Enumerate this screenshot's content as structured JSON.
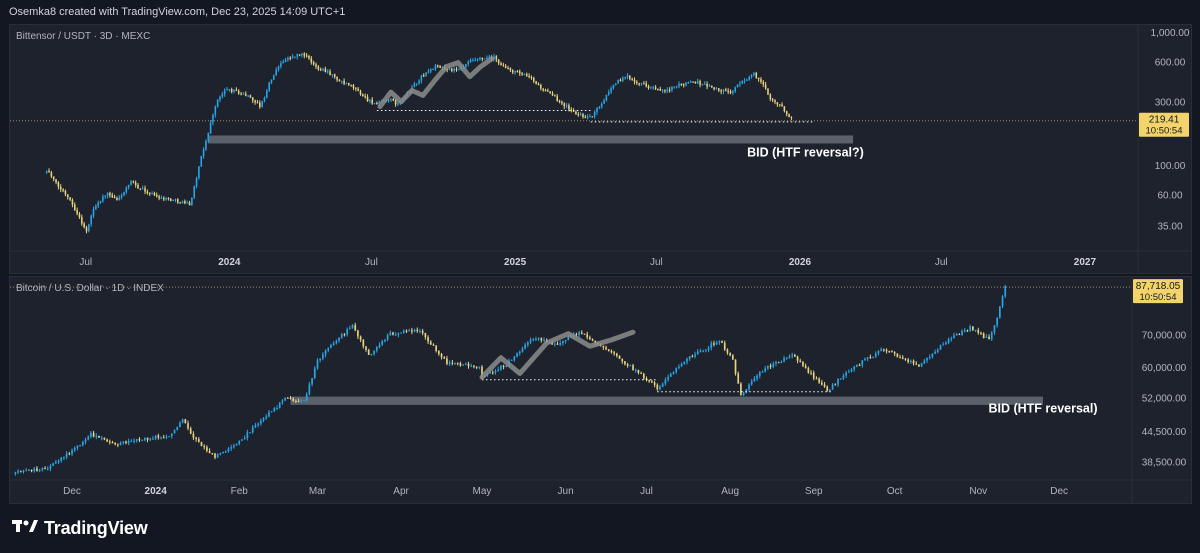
{
  "header": {
    "attribution": "Osemka8 created with TradingView.com, Dec 23, 2025 14:09 UTC+1"
  },
  "footer": {
    "logo_text": "TradingView",
    "logo_icon": "tradingview-logo-icon"
  },
  "colors": {
    "up": "#26a6e8",
    "down": "#e8d27c",
    "background": "#1e222d",
    "zone": "#8c969e",
    "path": "#8c8c8c"
  },
  "chart_data": [
    {
      "type": "candlestick",
      "title": "Bittensor / USDT · 3D · MEXC",
      "y_scale": "log",
      "ylim": [
        23,
        1150
      ],
      "y_ticks": [
        35,
        60,
        100,
        300,
        600,
        1000
      ],
      "y_tick_labels": [
        "35.00",
        "60.00",
        "100.00",
        "300.00",
        "600.00",
        "1,000.00"
      ],
      "x_ticks": [
        {
          "label": "Jul",
          "date": "2023-07-01"
        },
        {
          "label": "2024",
          "date": "2024-01-01"
        },
        {
          "label": "Jul",
          "date": "2024-07-01"
        },
        {
          "label": "2025",
          "date": "2025-01-01"
        },
        {
          "label": "Jul",
          "date": "2025-07-01"
        },
        {
          "label": "2026",
          "date": "2026-01-01"
        },
        {
          "label": "Jul",
          "date": "2026-07-01"
        },
        {
          "label": "2027",
          "date": "2027-01-01"
        }
      ],
      "xlim": [
        "2023-03-26",
        "2027-03-10"
      ],
      "candle_days": 3,
      "price_path": [
        [
          "2023-05-12",
          95
        ],
        [
          "2023-05-25",
          72
        ],
        [
          "2023-06-10",
          58
        ],
        [
          "2023-06-22",
          42
        ],
        [
          "2023-07-02",
          32
        ],
        [
          "2023-07-12",
          50
        ],
        [
          "2023-07-28",
          62
        ],
        [
          "2023-08-10",
          55
        ],
        [
          "2023-08-28",
          75
        ],
        [
          "2023-09-15",
          65
        ],
        [
          "2023-10-05",
          58
        ],
        [
          "2023-10-25",
          55
        ],
        [
          "2023-11-12",
          52
        ],
        [
          "2023-11-25",
          110
        ],
        [
          "2023-12-05",
          180
        ],
        [
          "2023-12-15",
          300
        ],
        [
          "2023-12-28",
          380
        ],
        [
          "2024-01-12",
          360
        ],
        [
          "2024-01-28",
          330
        ],
        [
          "2024-02-10",
          280
        ],
        [
          "2024-02-22",
          430
        ],
        [
          "2024-03-08",
          620
        ],
        [
          "2024-03-22",
          660
        ],
        [
          "2024-04-05",
          700
        ],
        [
          "2024-04-20",
          560
        ],
        [
          "2024-05-05",
          520
        ],
        [
          "2024-05-22",
          430
        ],
        [
          "2024-06-08",
          390
        ],
        [
          "2024-06-25",
          320
        ],
        [
          "2024-07-08",
          290
        ],
        [
          "2024-07-22",
          320
        ],
        [
          "2024-08-05",
          290
        ],
        [
          "2024-08-20",
          380
        ],
        [
          "2024-09-05",
          480
        ],
        [
          "2024-09-20",
          560
        ],
        [
          "2024-10-05",
          540
        ],
        [
          "2024-10-20",
          520
        ],
        [
          "2024-11-05",
          610
        ],
        [
          "2024-11-20",
          640
        ],
        [
          "2024-12-05",
          650
        ],
        [
          "2024-12-20",
          540
        ],
        [
          "2025-01-05",
          500
        ],
        [
          "2025-01-20",
          460
        ],
        [
          "2025-02-05",
          380
        ],
        [
          "2025-02-20",
          330
        ],
        [
          "2025-03-05",
          290
        ],
        [
          "2025-03-18",
          250
        ],
        [
          "2025-04-08",
          230
        ],
        [
          "2025-04-22",
          300
        ],
        [
          "2025-05-08",
          420
        ],
        [
          "2025-05-25",
          470
        ],
        [
          "2025-06-10",
          420
        ],
        [
          "2025-06-25",
          390
        ],
        [
          "2025-07-10",
          360
        ],
        [
          "2025-07-28",
          400
        ],
        [
          "2025-08-15",
          440
        ],
        [
          "2025-09-01",
          410
        ],
        [
          "2025-09-20",
          370
        ],
        [
          "2025-10-05",
          360
        ],
        [
          "2025-10-20",
          440
        ],
        [
          "2025-11-03",
          490
        ],
        [
          "2025-11-12",
          430
        ],
        [
          "2025-11-25",
          320
        ],
        [
          "2025-12-08",
          280
        ],
        [
          "2025-12-23",
          219.41
        ]
      ],
      "last_price_label": "219.41",
      "countdown_label": "10:50:54",
      "bid_zone": {
        "x0": "2023-12-05",
        "x1": "2026-03-10",
        "y0": 148,
        "y1": 170
      },
      "support_lines": [
        {
          "x0": "2024-07-08",
          "x1": "2025-04-08",
          "y": 262
        },
        {
          "x0": "2025-04-08",
          "x1": "2026-01-20",
          "y": 215
        }
      ],
      "projection_path": [
        [
          "2024-07-12",
          280
        ],
        [
          "2024-07-26",
          360
        ],
        [
          "2024-08-08",
          305
        ],
        [
          "2024-08-22",
          370
        ],
        [
          "2024-09-05",
          340
        ],
        [
          "2024-09-20",
          440
        ],
        [
          "2024-10-05",
          560
        ],
        [
          "2024-10-20",
          600
        ],
        [
          "2024-11-04",
          470
        ],
        [
          "2024-11-18",
          560
        ],
        [
          "2024-12-02",
          640
        ]
      ],
      "annotation": "BID (HTF reversal?)",
      "annotation_pos": [
        "2026-01-08",
        118
      ]
    },
    {
      "type": "candlestick",
      "title": "Bitcoin / U.S. Dollar · 1D · INDEX",
      "y_scale": "log",
      "ylim": [
        35500,
        92000
      ],
      "y_ticks": [
        38500,
        44500,
        52000,
        60000,
        70000
      ],
      "y_tick_labels": [
        "38,500.00",
        "44,500.00",
        "52,000.00",
        "60,000.00",
        "70,000.00"
      ],
      "x_ticks": [
        {
          "label": "Dec",
          "date": "2023-12-01"
        },
        {
          "label": "2024",
          "date": "2024-01-01"
        },
        {
          "label": "Feb",
          "date": "2024-02-01"
        },
        {
          "label": "Mar",
          "date": "2024-03-01"
        },
        {
          "label": "Apr",
          "date": "2024-04-01"
        },
        {
          "label": "May",
          "date": "2024-05-01"
        },
        {
          "label": "Jun",
          "date": "2024-06-01"
        },
        {
          "label": "Jul",
          "date": "2024-07-01"
        },
        {
          "label": "Aug",
          "date": "2024-08-01"
        },
        {
          "label": "Sep",
          "date": "2024-09-01"
        },
        {
          "label": "Oct",
          "date": "2024-10-01"
        },
        {
          "label": "Nov",
          "date": "2024-11-01"
        },
        {
          "label": "Dec",
          "date": "2024-12-01"
        }
      ],
      "xlim": [
        "2023-11-08",
        "2024-12-28"
      ],
      "candle_days": 1,
      "price_path": [
        [
          "2023-11-10",
          36800
        ],
        [
          "2023-11-22",
          37500
        ],
        [
          "2023-12-03",
          41500
        ],
        [
          "2023-12-08",
          44000
        ],
        [
          "2023-12-18",
          42000
        ],
        [
          "2023-12-26",
          43000
        ],
        [
          "2024-01-06",
          43800
        ],
        [
          "2024-01-11",
          47000
        ],
        [
          "2024-01-16",
          42800
        ],
        [
          "2024-01-23",
          39500
        ],
        [
          "2024-02-01",
          42500
        ],
        [
          "2024-02-10",
          47500
        ],
        [
          "2024-02-18",
          51800
        ],
        [
          "2024-02-25",
          51500
        ],
        [
          "2024-03-01",
          62000
        ],
        [
          "2024-03-08",
          68500
        ],
        [
          "2024-03-14",
          73000
        ],
        [
          "2024-03-20",
          63500
        ],
        [
          "2024-03-28",
          70500
        ],
        [
          "2024-04-08",
          71500
        ],
        [
          "2024-04-18",
          61500
        ],
        [
          "2024-04-30",
          60500
        ],
        [
          "2024-05-01",
          57500
        ],
        [
          "2024-05-10",
          61000
        ],
        [
          "2024-05-20",
          69000
        ],
        [
          "2024-05-28",
          67000
        ],
        [
          "2024-06-06",
          71000
        ],
        [
          "2024-06-15",
          66000
        ],
        [
          "2024-06-24",
          61000
        ],
        [
          "2024-07-05",
          54500
        ],
        [
          "2024-07-15",
          62000
        ],
        [
          "2024-07-28",
          68500
        ],
        [
          "2024-08-02",
          62000
        ],
        [
          "2024-08-05",
          52500
        ],
        [
          "2024-08-12",
          59000
        ],
        [
          "2024-08-24",
          64000
        ],
        [
          "2024-09-06",
          54000
        ],
        [
          "2024-09-15",
          60000
        ],
        [
          "2024-09-27",
          65500
        ],
        [
          "2024-10-10",
          60500
        ],
        [
          "2024-10-20",
          68000
        ],
        [
          "2024-10-29",
          72500
        ],
        [
          "2024-11-05",
          68500
        ],
        [
          "2024-11-08",
          76500
        ],
        [
          "2024-11-11",
          87718.05
        ]
      ],
      "last_price_label": "87,718.05",
      "countdown_label": "10:50:54",
      "bid_zone": {
        "x0": "2024-02-20",
        "x1": "2024-11-25",
        "y0": 50500,
        "y1": 52500
      },
      "support_lines": [
        {
          "x0": "2024-05-01",
          "x1": "2024-07-05",
          "y": 56800
        },
        {
          "x0": "2024-07-05",
          "x1": "2024-09-08",
          "y": 53700
        }
      ],
      "projection_path": [
        [
          "2024-05-01",
          57500
        ],
        [
          "2024-05-08",
          63000
        ],
        [
          "2024-05-15",
          58500
        ],
        [
          "2024-05-25",
          67500
        ],
        [
          "2024-06-02",
          70500
        ],
        [
          "2024-06-10",
          66500
        ],
        [
          "2024-06-18",
          68500
        ],
        [
          "2024-06-26",
          71000
        ]
      ],
      "annotation": "BID (HTF reversal)",
      "annotation_pos": [
        "2024-11-25",
        48700
      ]
    }
  ]
}
